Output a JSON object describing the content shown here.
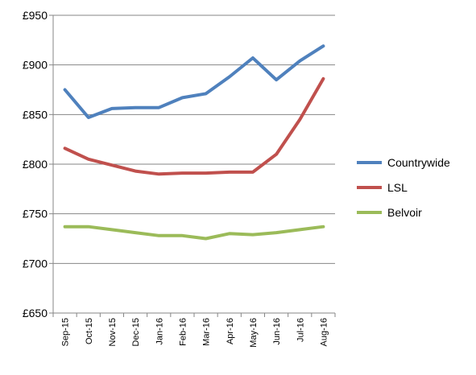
{
  "chart_data": {
    "type": "line",
    "title": "",
    "xlabel": "",
    "ylabel": "",
    "categories": [
      "Sep-15",
      "Oct-15",
      "Nov-15",
      "Dec-15",
      "Jan-16",
      "Feb-16",
      "Mar-16",
      "Apr-16",
      "May-16",
      "Jun-16",
      "Jul-16",
      "Aug-16"
    ],
    "y_tick_labels": [
      "£650",
      "£700",
      "£750",
      "£800",
      "£850",
      "£900",
      "£950"
    ],
    "y_tick_values": [
      650,
      700,
      750,
      800,
      850,
      900,
      950
    ],
    "ylim": [
      650,
      950
    ],
    "grid": "horizontal",
    "legend_position": "right",
    "series": [
      {
        "name": "Countrywide",
        "color": "#4f81bd",
        "values": [
          875,
          847,
          856,
          857,
          857,
          867,
          871,
          888,
          907,
          885,
          904,
          919
        ]
      },
      {
        "name": "LSL",
        "color": "#c0504d",
        "values": [
          816,
          805,
          799,
          793,
          790,
          791,
          791,
          792,
          792,
          810,
          845,
          886
        ]
      },
      {
        "name": "Belvoir",
        "color": "#9bbb59",
        "values": [
          737,
          737,
          734,
          731,
          728,
          728,
          725,
          730,
          729,
          731,
          734,
          737
        ]
      }
    ]
  }
}
